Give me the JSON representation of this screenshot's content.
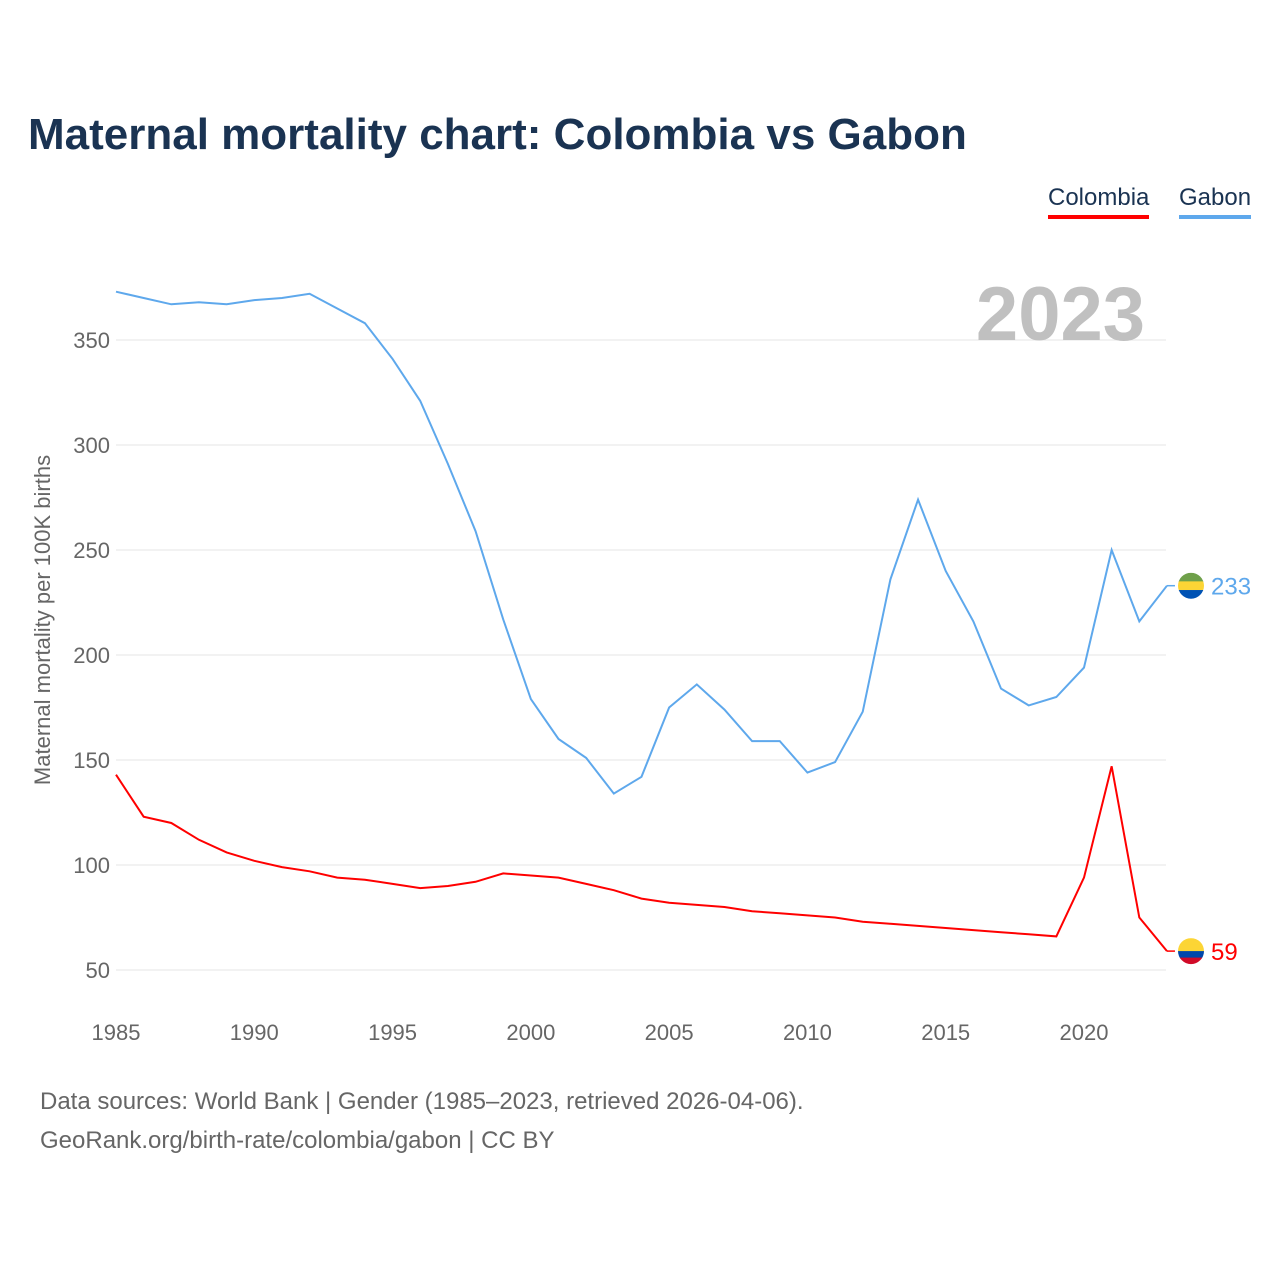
{
  "chart_data": {
    "type": "line",
    "title": "Maternal mortality chart: Colombia vs Gabon",
    "xlabel": "",
    "ylabel": "Maternal mortality per 100K births",
    "year_label": "2023",
    "xlim": [
      1985,
      2023
    ],
    "ylim": [
      30,
      380
    ],
    "x_ticks": [
      1985,
      1990,
      1995,
      2000,
      2005,
      2010,
      2015,
      2020
    ],
    "y_ticks": [
      50,
      100,
      150,
      200,
      250,
      300,
      350
    ],
    "grid": true,
    "legend_position": "top-right",
    "x": [
      1985,
      1986,
      1987,
      1988,
      1989,
      1990,
      1991,
      1992,
      1993,
      1994,
      1995,
      1996,
      1997,
      1998,
      1999,
      2000,
      2001,
      2002,
      2003,
      2004,
      2005,
      2006,
      2007,
      2008,
      2009,
      2010,
      2011,
      2012,
      2013,
      2014,
      2015,
      2016,
      2017,
      2018,
      2019,
      2020,
      2021,
      2022,
      2023
    ],
    "series": [
      {
        "name": "Colombia",
        "color": "#ff0000",
        "end_label": "59",
        "values": [
          143,
          123,
          120,
          112,
          106,
          102,
          99,
          97,
          94,
          93,
          91,
          89,
          90,
          92,
          96,
          95,
          94,
          91,
          88,
          84,
          82,
          81,
          80,
          78,
          77,
          76,
          75,
          73,
          72,
          71,
          70,
          69,
          68,
          67,
          66,
          94,
          147,
          75,
          59
        ]
      },
      {
        "name": "Gabon",
        "color": "#5ea8ec",
        "end_label": "233",
        "values": [
          373,
          370,
          367,
          368,
          367,
          369,
          370,
          372,
          365,
          358,
          341,
          321,
          291,
          259,
          217,
          179,
          160,
          151,
          134,
          142,
          175,
          186,
          174,
          159,
          159,
          144,
          149,
          173,
          236,
          274,
          240,
          216,
          184,
          176,
          180,
          194,
          250,
          216,
          233
        ]
      }
    ]
  },
  "footer": {
    "line1": "Data sources: World Bank | Gender (1985–2023, retrieved 2026-04-06).",
    "line2": "GeoRank.org/birth-rate/colombia/gabon | CC BY"
  }
}
